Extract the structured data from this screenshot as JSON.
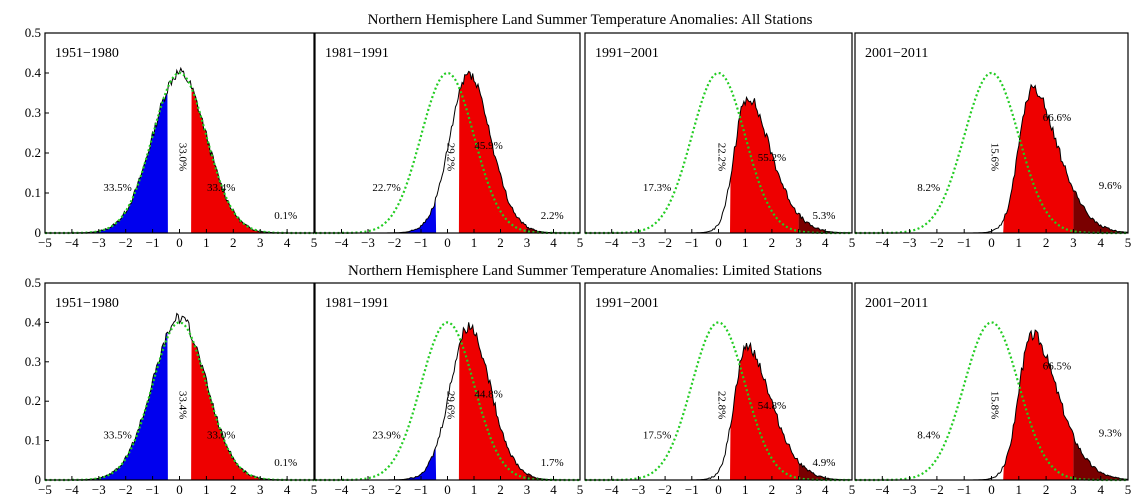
{
  "figure": {
    "rows": [
      {
        "title": "Northern Hemisphere Land Summer Temperature Anomalies: All Stations"
      },
      {
        "title": "Northern Hemisphere Land Summer Temperature Anomalies: Limited Stations"
      }
    ]
  },
  "colors": {
    "cold": "#0000ee",
    "warm": "#ee0000",
    "extreme_hot": "#7a0000",
    "reference_curve": "#22cc22",
    "histogram_line": "#000000"
  },
  "chart_data": [
    {
      "type": "area",
      "row": 0,
      "panel": 0,
      "label": "1951−1980",
      "xlim": [
        -5,
        5
      ],
      "ylim": [
        0,
        0.5
      ],
      "x_ticks": [
        "−5",
        "−4",
        "−3",
        "−2",
        "−1",
        "0",
        "1",
        "2",
        "3",
        "4",
        "5"
      ],
      "y_ticks": [
        "0",
        "0.1",
        "0.2",
        "0.3",
        "0.4",
        "0.5"
      ],
      "mean": 0.0,
      "sd": 1.0,
      "peak": 0.4,
      "percentages": {
        "cold": "33.5%",
        "normal": "33.0%",
        "hot": "33.4%",
        "extreme": "0.1%"
      }
    },
    {
      "type": "area",
      "row": 0,
      "panel": 1,
      "label": "1981−1991",
      "xlim": [
        -5,
        5
      ],
      "ylim": [
        0,
        0.5
      ],
      "x_ticks": [
        "−5",
        "−4",
        "−3",
        "−2",
        "−1",
        "0",
        "1",
        "2",
        "3",
        "4",
        "5"
      ],
      "mean": 0.3,
      "sd": 1.0,
      "peak": 0.4,
      "percentages": {
        "cold": "22.7%",
        "normal": "29.2%",
        "hot": "45.9%",
        "extreme": "2.2%"
      }
    },
    {
      "type": "area",
      "row": 0,
      "panel": 2,
      "label": "1991−2001",
      "xlim": [
        -5,
        5
      ],
      "ylim": [
        0,
        0.5
      ],
      "x_ticks": [
        "−5",
        "−4",
        "−3",
        "−2",
        "−1",
        "0",
        "1",
        "2",
        "3",
        "4",
        "5"
      ],
      "mean": 0.6,
      "sd": 1.15,
      "peak": 0.34,
      "percentages": {
        "cold": "17.3%",
        "normal": "22.2%",
        "hot": "55.2%",
        "extreme": "5.3%"
      }
    },
    {
      "type": "area",
      "row": 0,
      "panel": 3,
      "label": "2001−2011",
      "xlim": [
        -5,
        5
      ],
      "ylim": [
        0,
        0.5
      ],
      "x_ticks": [
        "−5",
        "−4",
        "−3",
        "−2",
        "−1",
        "0",
        "1",
        "2",
        "3",
        "4",
        "5"
      ],
      "mean": 1.0,
      "sd": 1.2,
      "peak": 0.36,
      "percentages": {
        "cold": "8.2%",
        "normal": "15.6%",
        "hot": "66.6%",
        "extreme": "9.6%"
      }
    },
    {
      "type": "area",
      "row": 1,
      "panel": 0,
      "label": "1951−1980",
      "xlim": [
        -5,
        5
      ],
      "ylim": [
        0,
        0.5
      ],
      "x_ticks": [
        "−5",
        "−4",
        "−3",
        "−2",
        "−1",
        "0",
        "1",
        "2",
        "3",
        "4",
        "5"
      ],
      "y_ticks": [
        "0",
        "0.1",
        "0.2",
        "0.3",
        "0.4",
        "0.5"
      ],
      "mean": 0.0,
      "sd": 1.0,
      "peak": 0.41,
      "percentages": {
        "cold": "33.5%",
        "normal": "33.4%",
        "hot": "33.0%",
        "extreme": "0.1%"
      }
    },
    {
      "type": "area",
      "row": 1,
      "panel": 1,
      "label": "1981−1991",
      "xlim": [
        -5,
        5
      ],
      "ylim": [
        0,
        0.5
      ],
      "x_ticks": [
        "−5",
        "−4",
        "−3",
        "−2",
        "−1",
        "0",
        "1",
        "2",
        "3",
        "4",
        "5"
      ],
      "mean": 0.3,
      "sd": 1.0,
      "peak": 0.39,
      "percentages": {
        "cold": "23.9%",
        "normal": "29.6%",
        "hot": "44.8%",
        "extreme": "1.7%"
      }
    },
    {
      "type": "area",
      "row": 1,
      "panel": 2,
      "label": "1991−2001",
      "xlim": [
        -5,
        5
      ],
      "ylim": [
        0,
        0.5
      ],
      "x_ticks": [
        "−5",
        "−4",
        "−3",
        "−2",
        "−1",
        "0",
        "1",
        "2",
        "3",
        "4",
        "5"
      ],
      "mean": 0.6,
      "sd": 1.15,
      "peak": 0.34,
      "percentages": {
        "cold": "17.5%",
        "normal": "22.8%",
        "hot": "54.8%",
        "extreme": "4.9%"
      }
    },
    {
      "type": "area",
      "row": 1,
      "panel": 3,
      "label": "2001−2011",
      "xlim": [
        -5,
        5
      ],
      "ylim": [
        0,
        0.5
      ],
      "x_ticks": [
        "−5",
        "−4",
        "−3",
        "−2",
        "−1",
        "0",
        "1",
        "2",
        "3",
        "4",
        "5"
      ],
      "mean": 1.0,
      "sd": 1.2,
      "peak": 0.37,
      "percentages": {
        "cold": "8.4%",
        "normal": "15.8%",
        "hot": "66.5%",
        "extreme": "9.3%"
      }
    }
  ]
}
